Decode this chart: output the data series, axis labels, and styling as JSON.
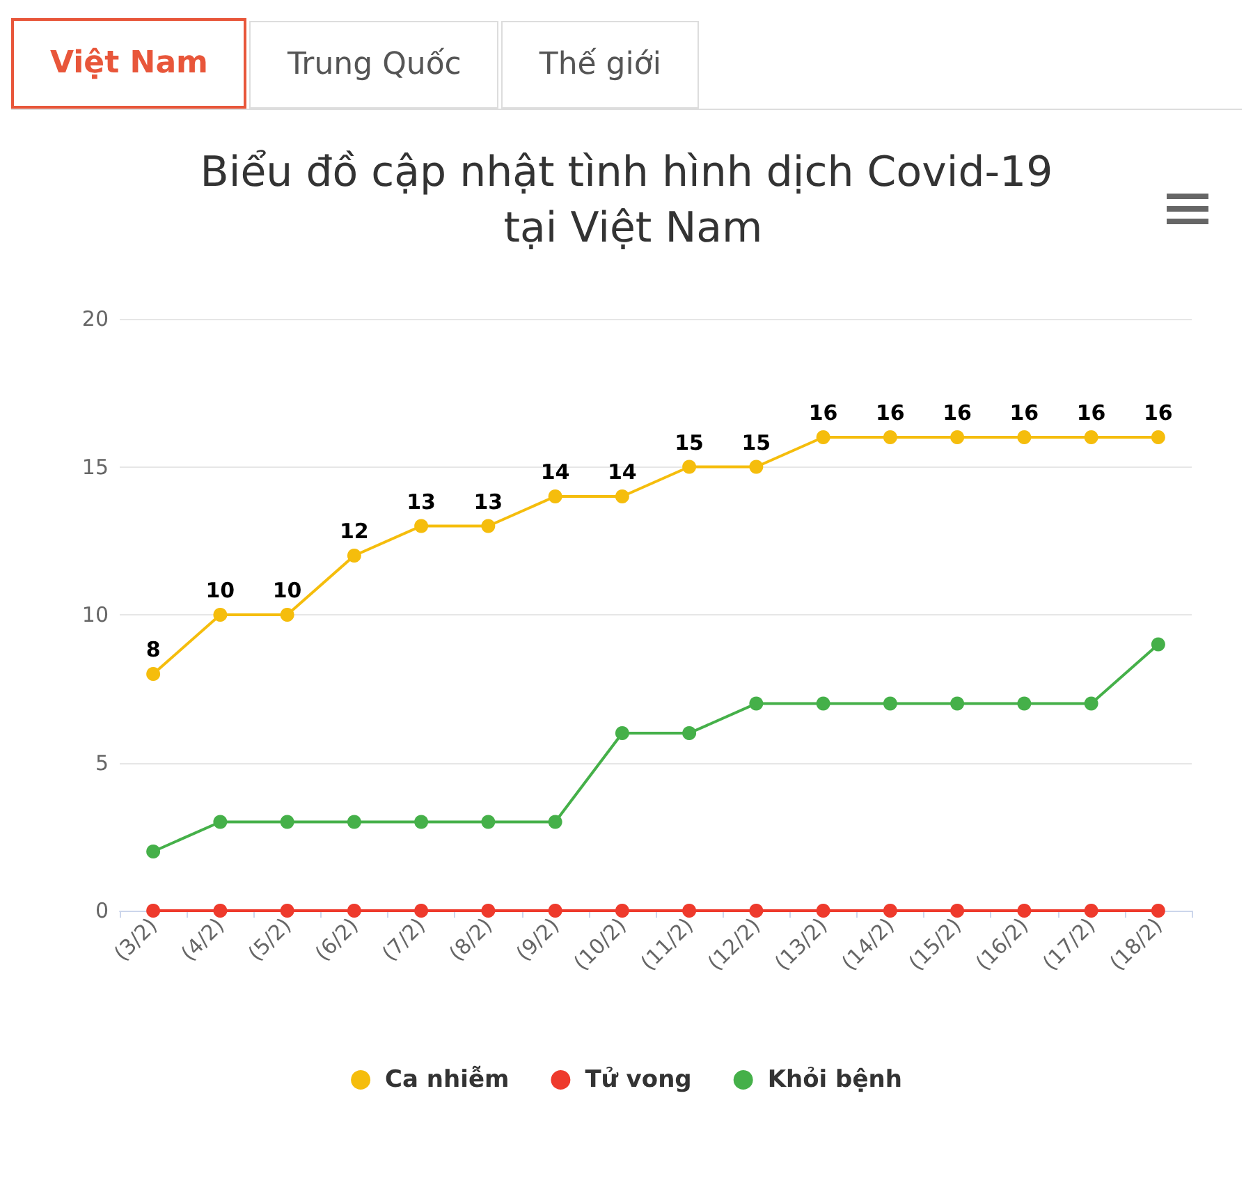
{
  "chart_data": {
    "type": "line",
    "title": "Biểu đồ cập nhật tình hình dịch Covid-19 tại Việt Nam",
    "annotations": [
      "Việt Nam",
      "Trung Quốc",
      "Thế giới"
    ],
    "categories": [
      "(3/2)",
      "(4/2)",
      "(5/2)",
      "(6/2)",
      "(7/2)",
      "(8/2)",
      "(9/2)",
      "(10/2)",
      "(11/2)",
      "(12/2)",
      "(13/2)",
      "(14/2)",
      "(15/2)",
      "(16/2)",
      "(17/2)",
      "(18/2)"
    ],
    "series": [
      {
        "name": "Ca nhiễm",
        "color": "#f5bd0c",
        "values": [
          8,
          10,
          10,
          12,
          13,
          13,
          14,
          14,
          15,
          15,
          16,
          16,
          16,
          16,
          16,
          16
        ],
        "value_labels": [
          "8",
          "10",
          "10",
          "12",
          "13",
          "13",
          "14",
          "14",
          "15",
          "15",
          "16",
          "16",
          "16",
          "16",
          "16",
          "16"
        ]
      },
      {
        "name": "Tử vong",
        "color": "#ee3a2c",
        "values": [
          0,
          0,
          0,
          0,
          0,
          0,
          0,
          0,
          0,
          0,
          0,
          0,
          0,
          0,
          0,
          0
        ]
      },
      {
        "name": "Khỏi bệnh",
        "color": "#45b049",
        "values": [
          2,
          3,
          3,
          3,
          3,
          3,
          3,
          6,
          6,
          7,
          7,
          7,
          7,
          7,
          7,
          9
        ]
      }
    ],
    "ylim": [
      0,
      20
    ],
    "yticks": [
      0,
      5,
      10,
      15,
      20
    ],
    "grid": "y",
    "legend": "bottom",
    "marker": "circle",
    "line_style": "solid"
  }
}
